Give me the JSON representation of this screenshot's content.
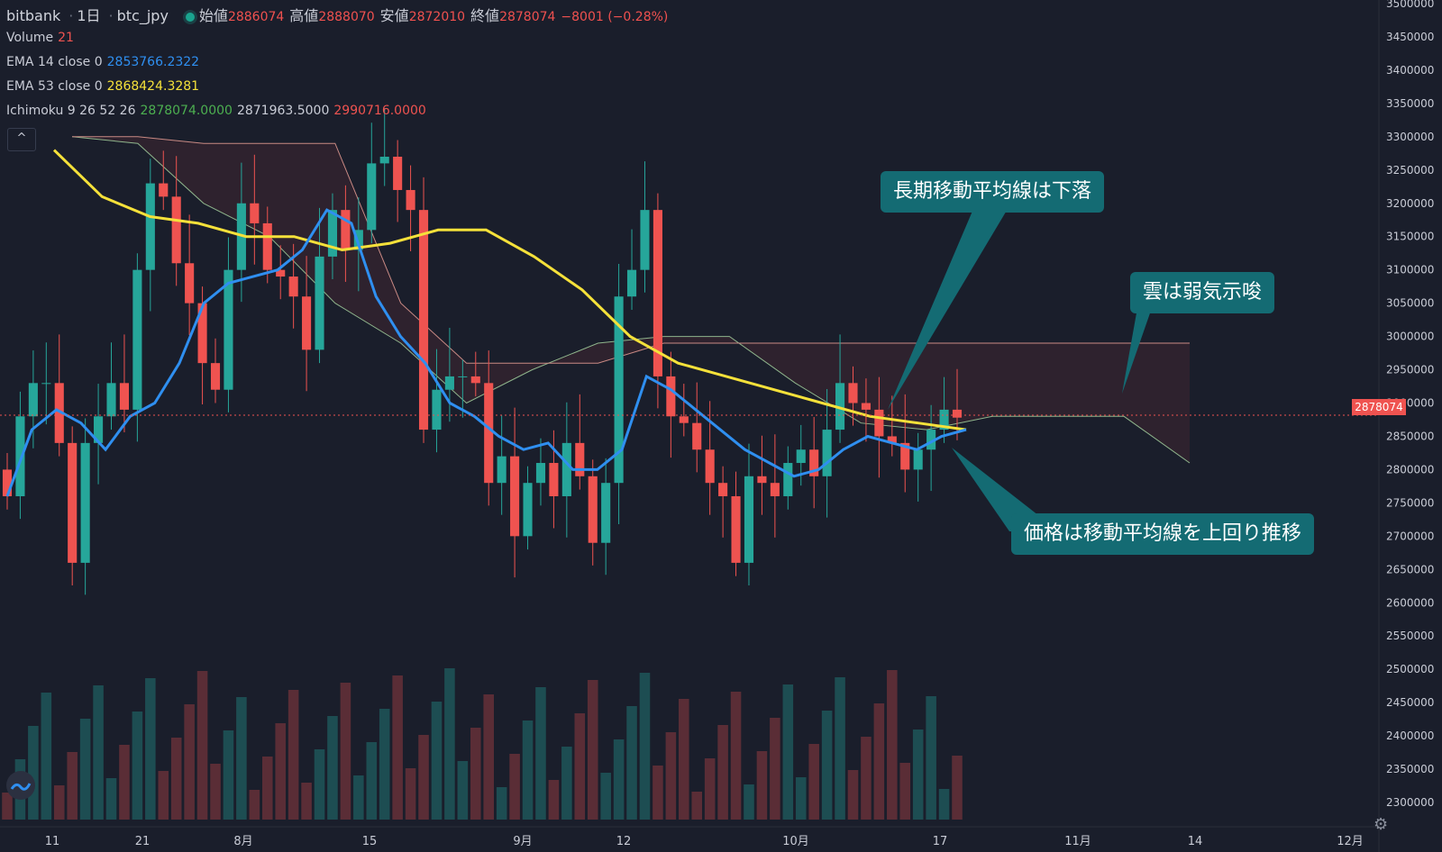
{
  "header": {
    "exchange": "bitbank",
    "interval": "1日",
    "symbol": "btc_jpy",
    "open_label": "始値",
    "open": "2886074",
    "high_label": "高値",
    "high": "2888070",
    "low_label": "安値",
    "low": "2872010",
    "close_label": "終値",
    "close": "2878074",
    "change": "−8001 (−0.28%)"
  },
  "indicators": {
    "volume": {
      "name": "Volume",
      "value": "21"
    },
    "ema14": {
      "name": "EMA 14 close 0",
      "value": "2853766.2322"
    },
    "ema53": {
      "name": "EMA 53 close 0",
      "value": "2868424.3281"
    },
    "ichimoku": {
      "name": "Ichimoku 9 26 52 26",
      "v1": "2878074.0000",
      "v2": "2871963.5000",
      "v3": "2990716.0000"
    }
  },
  "collapse_icon": "^",
  "current_price_tag": "2878074",
  "annotations": {
    "long_ma": "長期移動平均線は下落",
    "cloud": "雲は弱気示唆",
    "price": "価格は移動平均線を上回り推移"
  },
  "colors": {
    "up": "#26a69a",
    "down": "#ef5350",
    "ema14": "#2f8ff0",
    "ema53": "#f5e13a",
    "background": "#1a1e2b",
    "callout": "#146b73"
  },
  "chart_data": {
    "type": "candlestick",
    "price_axis_ticks": [
      3500000,
      3450000,
      3400000,
      3350000,
      3300000,
      3250000,
      3200000,
      3150000,
      3100000,
      3050000,
      3000000,
      2950000,
      2900000,
      2850000,
      2800000,
      2750000,
      2700000,
      2650000,
      2600000,
      2550000,
      2500000,
      2450000,
      2400000,
      2350000,
      2300000
    ],
    "time_axis_ticks": [
      "11",
      "21",
      "8月",
      "15",
      "9月",
      "12",
      "10月",
      "17",
      "11月",
      "14",
      "12月"
    ],
    "ohlc_close": [
      2760000,
      2880000,
      2930000,
      2930000,
      2840000,
      2660000,
      2840000,
      2880000,
      2930000,
      2890000,
      3100000,
      3230000,
      3210000,
      3110000,
      3050000,
      2960000,
      2920000,
      3100000,
      3200000,
      3170000,
      3100000,
      3090000,
      3060000,
      2980000,
      3120000,
      3190000,
      3130000,
      3160000,
      3260000,
      3270000,
      3220000,
      3190000,
      2860000,
      2920000,
      2940000,
      2940000,
      2930000,
      2780000,
      2820000,
      2700000,
      2780000,
      2810000,
      2760000,
      2840000,
      2790000,
      2690000,
      2780000,
      3060000,
      3100000,
      3190000,
      2940000,
      2880000,
      2870000,
      2830000,
      2780000,
      2760000,
      2660000,
      2790000,
      2780000,
      2760000,
      2810000,
      2830000,
      2790000,
      2860000,
      2930000,
      2900000,
      2890000,
      2850000,
      2840000,
      2800000,
      2830000,
      2860000,
      2890000,
      2878074
    ],
    "ema14": [
      2760000,
      2860000,
      2890000,
      2870000,
      2830000,
      2880000,
      2900000,
      2960000,
      3050000,
      3080000,
      3090000,
      3100000,
      3130000,
      3190000,
      3170000,
      3060000,
      3000000,
      2960000,
      2900000,
      2880000,
      2850000,
      2830000,
      2840000,
      2800000,
      2800000,
      2830000,
      2940000,
      2920000,
      2890000,
      2860000,
      2830000,
      2810000,
      2790000,
      2800000,
      2830000,
      2850000,
      2840000,
      2830000,
      2850000,
      2860000
    ],
    "ema53": [
      3280000,
      3210000,
      3180000,
      3170000,
      3150000,
      3150000,
      3130000,
      3140000,
      3160000,
      3160000,
      3120000,
      3070000,
      3000000,
      2960000,
      2940000,
      2920000,
      2900000,
      2880000,
      2870000,
      2860000
    ],
    "cloud_span_a": [
      3300000,
      3290000,
      3200000,
      3150000,
      3050000,
      2990000,
      2900000,
      2950000,
      2990000,
      3000000,
      3000000,
      2930000,
      2870000,
      2860000,
      2880000,
      2880000,
      2880000,
      2810000
    ],
    "cloud_span_b": [
      3300000,
      3300000,
      3290000,
      3290000,
      3290000,
      3050000,
      2960000,
      2960000,
      2960000,
      2990000,
      2990000,
      2990000,
      2990000,
      2990000,
      2990000,
      2990000,
      2990000,
      2990000
    ]
  }
}
